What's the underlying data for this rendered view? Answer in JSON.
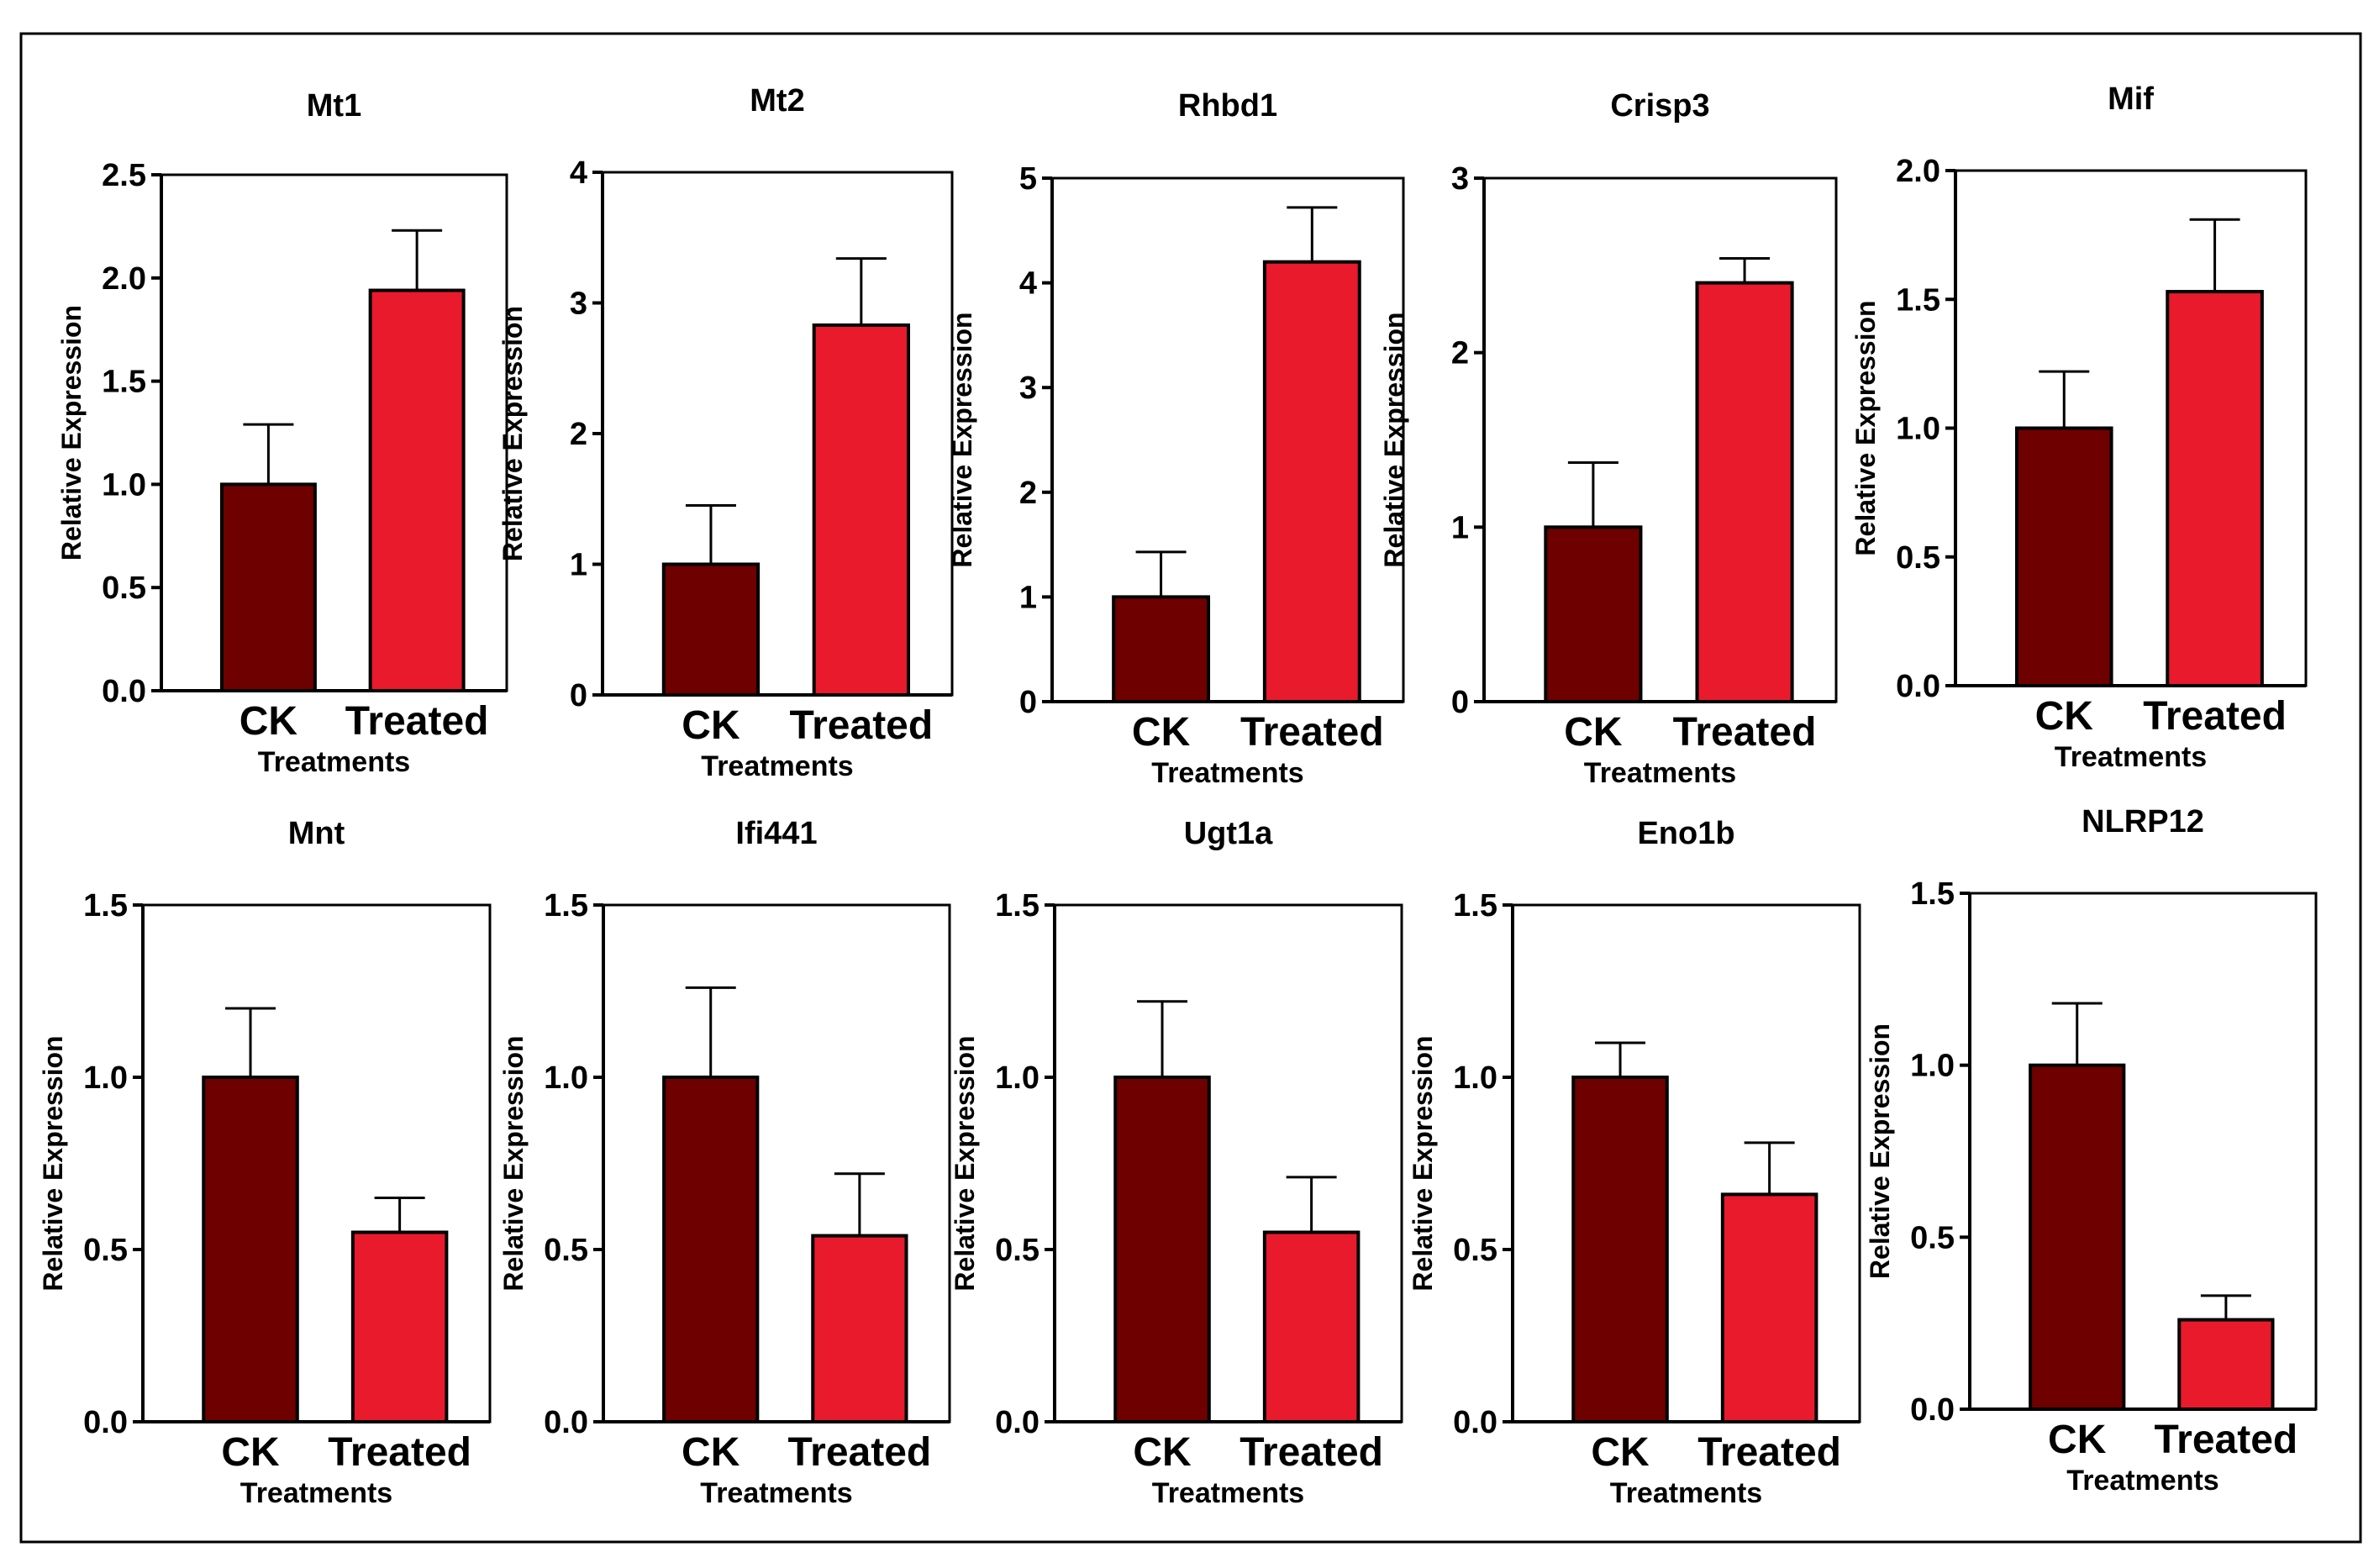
{
  "figure": {
    "border_color": "#000000"
  },
  "colors": {
    "CK": "#6e0000",
    "Treated": "#e81a2c"
  },
  "chart_data": [
    {
      "type": "bar",
      "title": "Mt1",
      "categories": [
        "CK",
        "Treated"
      ],
      "values": [
        1.0,
        1.94
      ],
      "errors": [
        0.29,
        0.29
      ],
      "xlabel": "Treatments",
      "ylabel": "Relative Expression",
      "ylim": [
        0,
        2.5
      ],
      "yticks": [
        "0.0",
        "0.5",
        "1.0",
        "1.5",
        "2.0",
        "2.5"
      ]
    },
    {
      "type": "bar",
      "title": "Mt2",
      "categories": [
        "CK",
        "Treated"
      ],
      "values": [
        1.0,
        2.83
      ],
      "errors": [
        0.45,
        0.51
      ],
      "xlabel": "Treatments",
      "ylabel": "Relative Expression",
      "ylim": [
        0,
        4
      ],
      "yticks": [
        "0",
        "1",
        "2",
        "3",
        "4"
      ]
    },
    {
      "type": "bar",
      "title": "Rhbd1",
      "categories": [
        "CK",
        "Treated"
      ],
      "values": [
        1.0,
        4.2
      ],
      "errors": [
        0.43,
        0.52
      ],
      "xlabel": "Treatments",
      "ylabel": "Relative Expression",
      "ylim": [
        0,
        5
      ],
      "yticks": [
        "0",
        "1",
        "2",
        "3",
        "4",
        "5"
      ]
    },
    {
      "type": "bar",
      "title": "Crisp3",
      "categories": [
        "CK",
        "Treated"
      ],
      "values": [
        1.0,
        2.4
      ],
      "errors": [
        0.37,
        0.14
      ],
      "xlabel": "Treatments",
      "ylabel": "Relative Expression",
      "ylim": [
        0,
        3
      ],
      "yticks": [
        "0",
        "1",
        "2",
        "3"
      ]
    },
    {
      "type": "bar",
      "title": "Mif",
      "categories": [
        "CK",
        "Treated"
      ],
      "values": [
        1.0,
        1.53
      ],
      "errors": [
        0.22,
        0.28
      ],
      "xlabel": "Treatments",
      "ylabel": "Relative Expression",
      "ylim": [
        0,
        2.0
      ],
      "yticks": [
        "0.0",
        "0.5",
        "1.0",
        "1.5",
        "2.0"
      ]
    },
    {
      "type": "bar",
      "title": "Mnt",
      "categories": [
        "CK",
        "Treated"
      ],
      "values": [
        1.0,
        0.55
      ],
      "errors": [
        0.2,
        0.1
      ],
      "xlabel": "Treatments",
      "ylabel": "Relative Expression",
      "ylim": [
        0,
        1.5
      ],
      "yticks": [
        "0.0",
        "0.5",
        "1.0",
        "1.5"
      ]
    },
    {
      "type": "bar",
      "title": "Ifi441",
      "categories": [
        "CK",
        "Treated"
      ],
      "values": [
        1.0,
        0.54
      ],
      "errors": [
        0.26,
        0.18
      ],
      "xlabel": "Treatments",
      "ylabel": "Relative Expression",
      "ylim": [
        0,
        1.5
      ],
      "yticks": [
        "0.0",
        "0.5",
        "1.0",
        "1.5"
      ]
    },
    {
      "type": "bar",
      "title": "Ugt1a",
      "categories": [
        "CK",
        "Treated"
      ],
      "values": [
        1.0,
        0.55
      ],
      "errors": [
        0.22,
        0.16
      ],
      "xlabel": "Treatments",
      "ylabel": "Relative Expression",
      "ylim": [
        0,
        1.5
      ],
      "yticks": [
        "0.0",
        "0.5",
        "1.0",
        "1.5"
      ]
    },
    {
      "type": "bar",
      "title": "Eno1b",
      "categories": [
        "CK",
        "Treated"
      ],
      "values": [
        1.0,
        0.66
      ],
      "errors": [
        0.1,
        0.15
      ],
      "xlabel": "Treatments",
      "ylabel": "Relative Expression",
      "ylim": [
        0,
        1.5
      ],
      "yticks": [
        "0.0",
        "0.5",
        "1.0",
        "1.5"
      ]
    },
    {
      "type": "bar",
      "title": "NLRP12",
      "categories": [
        "CK",
        "Treated"
      ],
      "values": [
        1.0,
        0.26
      ],
      "errors": [
        0.18,
        0.07
      ],
      "xlabel": "Treatments",
      "ylabel": "Relative Expression",
      "ylim": [
        0,
        1.5
      ],
      "yticks": [
        "0.0",
        "0.5",
        "1.0",
        "1.5"
      ]
    }
  ]
}
